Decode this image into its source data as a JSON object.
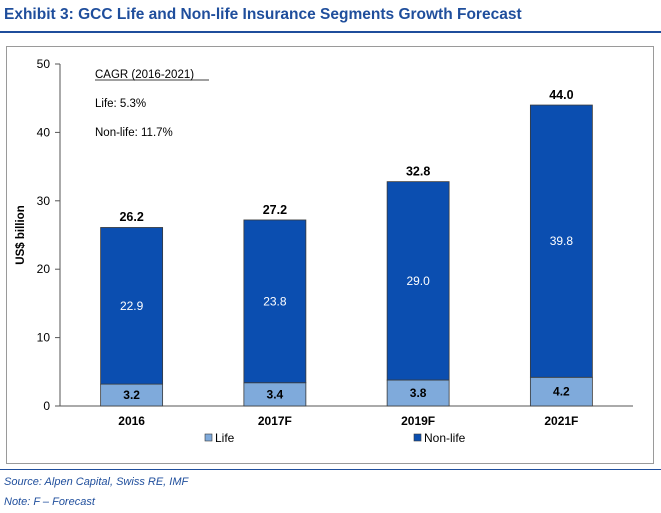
{
  "title": "Exhibit 3:  GCC Life and Non-life Insurance Segments Growth Forecast",
  "source": "Source:  Alpen Capital, Swiss RE, IMF",
  "note": "Note:  F – Forecast",
  "colors": {
    "accent": "#1f4e9c",
    "life": "#7faadb",
    "nonlife": "#0b4eb0"
  },
  "chart_data": {
    "type": "bar",
    "stacked": true,
    "categories": [
      "2016",
      "2017F",
      "2019F",
      "2021F"
    ],
    "series": [
      {
        "name": "Life",
        "values": [
          3.2,
          3.4,
          3.8,
          4.2
        ]
      },
      {
        "name": "Non-life",
        "values": [
          22.9,
          23.8,
          29.0,
          39.8
        ]
      }
    ],
    "totals": [
      26.2,
      27.2,
      32.8,
      44.0
    ],
    "total_labels": [
      "26.2",
      "27.2",
      "32.8",
      "44.0"
    ],
    "series_labels": [
      [
        "3.2",
        "3.4",
        "3.8",
        "4.2"
      ],
      [
        "22.9",
        "23.8",
        "29.0",
        "39.8"
      ]
    ],
    "ylabel": "US$ billion",
    "ylim": [
      0,
      50
    ],
    "yticks": [
      0,
      10,
      20,
      30,
      40,
      50
    ],
    "grid": false,
    "legend_position": "bottom",
    "annotation": {
      "heading": "CAGR (2016-2021)",
      "lines": [
        "Life: 5.3%",
        "Non-life: 11.7%"
      ]
    }
  }
}
